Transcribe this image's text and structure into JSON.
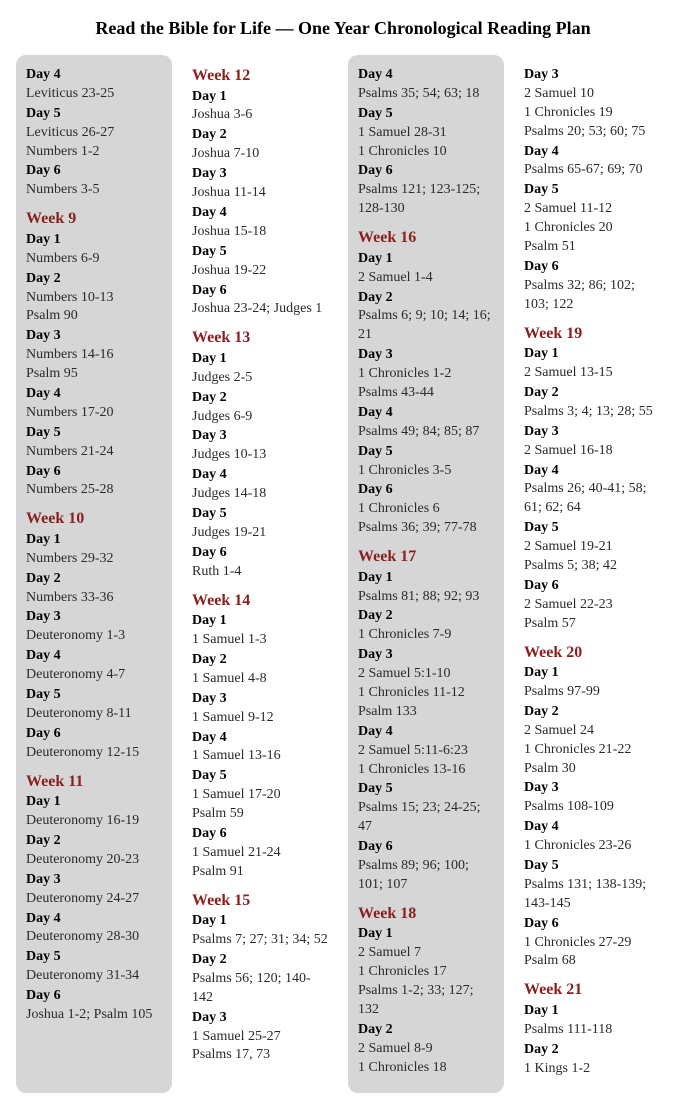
{
  "title": "Read the Bible for Life — One Year Chronological Reading Plan",
  "columns": [
    {
      "shaded": true,
      "items": [
        {
          "type": "day",
          "text": "Day 4"
        },
        {
          "type": "reading",
          "text": "Leviticus 23-25"
        },
        {
          "type": "day",
          "text": "Day 5"
        },
        {
          "type": "reading",
          "text": "Leviticus 26-27"
        },
        {
          "type": "reading",
          "text": "Numbers 1-2"
        },
        {
          "type": "day",
          "text": "Day 6"
        },
        {
          "type": "reading",
          "text": "Numbers 3-5"
        },
        {
          "type": "week",
          "text": "Week 9"
        },
        {
          "type": "day",
          "text": "Day 1"
        },
        {
          "type": "reading",
          "text": "Numbers 6-9"
        },
        {
          "type": "day",
          "text": "Day 2"
        },
        {
          "type": "reading",
          "text": "Numbers 10-13"
        },
        {
          "type": "reading",
          "text": "Psalm 90"
        },
        {
          "type": "day",
          "text": "Day 3"
        },
        {
          "type": "reading",
          "text": "Numbers 14-16"
        },
        {
          "type": "reading",
          "text": "Psalm 95"
        },
        {
          "type": "day",
          "text": "Day 4"
        },
        {
          "type": "reading",
          "text": "Numbers 17-20"
        },
        {
          "type": "day",
          "text": "Day 5"
        },
        {
          "type": "reading",
          "text": "Numbers 21-24"
        },
        {
          "type": "day",
          "text": "Day 6"
        },
        {
          "type": "reading",
          "text": "Numbers 25-28"
        },
        {
          "type": "week",
          "text": "Week 10"
        },
        {
          "type": "day",
          "text": "Day 1"
        },
        {
          "type": "reading",
          "text": "Numbers 29-32"
        },
        {
          "type": "day",
          "text": "Day 2"
        },
        {
          "type": "reading",
          "text": "Numbers 33-36"
        },
        {
          "type": "day",
          "text": "Day 3"
        },
        {
          "type": "reading",
          "text": "Deuteronomy 1-3"
        },
        {
          "type": "day",
          "text": "Day 4"
        },
        {
          "type": "reading",
          "text": "Deuteronomy 4-7"
        },
        {
          "type": "day",
          "text": "Day 5"
        },
        {
          "type": "reading",
          "text": "Deuteronomy 8-11"
        },
        {
          "type": "day",
          "text": "Day 6"
        },
        {
          "type": "reading",
          "text": "Deuteronomy 12-15"
        },
        {
          "type": "week",
          "text": "Week 11"
        },
        {
          "type": "day",
          "text": "Day 1"
        },
        {
          "type": "reading",
          "text": "Deuteronomy 16-19"
        },
        {
          "type": "day",
          "text": "Day 2"
        },
        {
          "type": "reading",
          "text": "Deuteronomy 20-23"
        },
        {
          "type": "day",
          "text": "Day 3"
        },
        {
          "type": "reading",
          "text": "Deuteronomy 24-27"
        },
        {
          "type": "day",
          "text": "Day 4"
        },
        {
          "type": "reading",
          "text": "Deuteronomy 28-30"
        },
        {
          "type": "day",
          "text": "Day 5"
        },
        {
          "type": "reading",
          "text": "Deuteronomy 31-34"
        },
        {
          "type": "day",
          "text": "Day 6"
        },
        {
          "type": "reading",
          "text": "Joshua 1-2; Psalm 105"
        }
      ]
    },
    {
      "shaded": false,
      "items": [
        {
          "type": "week",
          "text": "Week 12",
          "first": true
        },
        {
          "type": "day",
          "text": "Day 1"
        },
        {
          "type": "reading",
          "text": "Joshua 3-6"
        },
        {
          "type": "day",
          "text": "Day 2"
        },
        {
          "type": "reading",
          "text": "Joshua 7-10"
        },
        {
          "type": "day",
          "text": "Day 3"
        },
        {
          "type": "reading",
          "text": "Joshua 11-14"
        },
        {
          "type": "day",
          "text": "Day 4"
        },
        {
          "type": "reading",
          "text": "Joshua 15-18"
        },
        {
          "type": "day",
          "text": "Day 5"
        },
        {
          "type": "reading",
          "text": "Joshua 19-22"
        },
        {
          "type": "day",
          "text": "Day 6"
        },
        {
          "type": "reading",
          "text": "Joshua 23-24; Judges 1"
        },
        {
          "type": "week",
          "text": "Week 13"
        },
        {
          "type": "day",
          "text": "Day 1"
        },
        {
          "type": "reading",
          "text": "Judges 2-5"
        },
        {
          "type": "day",
          "text": "Day 2"
        },
        {
          "type": "reading",
          "text": "Judges 6-9"
        },
        {
          "type": "day",
          "text": "Day 3"
        },
        {
          "type": "reading",
          "text": "Judges 10-13"
        },
        {
          "type": "day",
          "text": "Day 4"
        },
        {
          "type": "reading",
          "text": "Judges 14-18"
        },
        {
          "type": "day",
          "text": "Day 5"
        },
        {
          "type": "reading",
          "text": "Judges 19-21"
        },
        {
          "type": "day",
          "text": "Day 6"
        },
        {
          "type": "reading",
          "text": "Ruth 1-4"
        },
        {
          "type": "week",
          "text": "Week 14"
        },
        {
          "type": "day",
          "text": "Day 1"
        },
        {
          "type": "reading",
          "text": "1 Samuel 1-3"
        },
        {
          "type": "day",
          "text": "Day 2"
        },
        {
          "type": "reading",
          "text": "1 Samuel 4-8"
        },
        {
          "type": "day",
          "text": "Day 3"
        },
        {
          "type": "reading",
          "text": "1 Samuel 9-12"
        },
        {
          "type": "day",
          "text": "Day 4"
        },
        {
          "type": "reading",
          "text": "1 Samuel 13-16"
        },
        {
          "type": "day",
          "text": "Day 5"
        },
        {
          "type": "reading",
          "text": "1 Samuel 17-20"
        },
        {
          "type": "reading",
          "text": "Psalm 59"
        },
        {
          "type": "day",
          "text": "Day 6"
        },
        {
          "type": "reading",
          "text": "1 Samuel 21-24"
        },
        {
          "type": "reading",
          "text": "Psalm 91"
        },
        {
          "type": "week",
          "text": "Week 15"
        },
        {
          "type": "day",
          "text": "Day 1"
        },
        {
          "type": "reading",
          "text": "Psalms 7; 27; 31; 34; 52"
        },
        {
          "type": "day",
          "text": "Day 2"
        },
        {
          "type": "reading",
          "text": "Psalms 56; 120; 140-142"
        },
        {
          "type": "day",
          "text": "Day 3"
        },
        {
          "type": "reading",
          "text": "1 Samuel 25-27"
        },
        {
          "type": "reading",
          "text": "Psalms 17, 73"
        }
      ]
    },
    {
      "shaded": true,
      "items": [
        {
          "type": "day",
          "text": "Day 4"
        },
        {
          "type": "reading",
          "text": "Psalms 35; 54; 63; 18"
        },
        {
          "type": "day",
          "text": "Day 5"
        },
        {
          "type": "reading",
          "text": "1 Samuel 28-31"
        },
        {
          "type": "reading",
          "text": "1 Chronicles 10"
        },
        {
          "type": "day",
          "text": "Day 6"
        },
        {
          "type": "reading",
          "text": "Psalms 121; 123-125; 128-130"
        },
        {
          "type": "week",
          "text": "Week 16"
        },
        {
          "type": "day",
          "text": "Day 1"
        },
        {
          "type": "reading",
          "text": "2 Samuel 1-4"
        },
        {
          "type": "day",
          "text": "Day 2"
        },
        {
          "type": "reading",
          "text": "Psalms 6; 9; 10; 14; 16; 21"
        },
        {
          "type": "day",
          "text": "Day 3"
        },
        {
          "type": "reading",
          "text": "1 Chronicles 1-2"
        },
        {
          "type": "reading",
          "text": "Psalms 43-44"
        },
        {
          "type": "day",
          "text": "Day 4"
        },
        {
          "type": "reading",
          "text": "Psalms 49; 84; 85; 87"
        },
        {
          "type": "day",
          "text": "Day 5"
        },
        {
          "type": "reading",
          "text": "1 Chronicles 3-5"
        },
        {
          "type": "day",
          "text": "Day 6"
        },
        {
          "type": "reading",
          "text": "1 Chronicles 6"
        },
        {
          "type": "reading",
          "text": "Psalms 36; 39; 77-78"
        },
        {
          "type": "week",
          "text": "Week 17"
        },
        {
          "type": "day",
          "text": "Day 1"
        },
        {
          "type": "reading",
          "text": "Psalms 81; 88; 92; 93"
        },
        {
          "type": "day",
          "text": "Day 2"
        },
        {
          "type": "reading",
          "text": "1 Chronicles 7-9"
        },
        {
          "type": "day",
          "text": "Day 3"
        },
        {
          "type": "reading",
          "text": "2 Samuel 5:1-10"
        },
        {
          "type": "reading",
          "text": "1 Chronicles 11-12"
        },
        {
          "type": "reading",
          "text": "Psalm 133"
        },
        {
          "type": "day",
          "text": "Day 4"
        },
        {
          "type": "reading",
          "text": "2 Samuel 5:11-6:23"
        },
        {
          "type": "reading",
          "text": "1 Chronicles 13-16"
        },
        {
          "type": "day",
          "text": "Day 5"
        },
        {
          "type": "reading",
          "text": "Psalms 15; 23; 24-25; 47"
        },
        {
          "type": "day",
          "text": "Day 6"
        },
        {
          "type": "reading",
          "text": "Psalms 89; 96; 100; 101; 107"
        },
        {
          "type": "week",
          "text": "Week 18"
        },
        {
          "type": "day",
          "text": "Day 1"
        },
        {
          "type": "reading",
          "text": "2 Samuel 7"
        },
        {
          "type": "reading",
          "text": "1 Chronicles 17"
        },
        {
          "type": "reading",
          "text": "Psalms 1-2; 33; 127; 132"
        },
        {
          "type": "day",
          "text": "Day 2"
        },
        {
          "type": "reading",
          "text": "2 Samuel 8-9"
        },
        {
          "type": "reading",
          "text": "1 Chronicles 18"
        }
      ]
    },
    {
      "shaded": false,
      "items": [
        {
          "type": "day",
          "text": "Day 3"
        },
        {
          "type": "reading",
          "text": "2 Samuel 10"
        },
        {
          "type": "reading",
          "text": "1 Chronicles 19"
        },
        {
          "type": "reading",
          "text": "Psalms 20; 53; 60; 75"
        },
        {
          "type": "day",
          "text": "Day 4"
        },
        {
          "type": "reading",
          "text": "Psalms 65-67; 69; 70"
        },
        {
          "type": "day",
          "text": "Day 5"
        },
        {
          "type": "reading",
          "text": "2 Samuel 11-12"
        },
        {
          "type": "reading",
          "text": "1 Chronicles 20"
        },
        {
          "type": "reading",
          "text": "Psalm 51"
        },
        {
          "type": "day",
          "text": "Day 6"
        },
        {
          "type": "reading",
          "text": "Psalms 32; 86; 102; 103; 122"
        },
        {
          "type": "week",
          "text": "Week 19"
        },
        {
          "type": "day",
          "text": "Day 1"
        },
        {
          "type": "reading",
          "text": "2 Samuel 13-15"
        },
        {
          "type": "day",
          "text": "Day 2"
        },
        {
          "type": "reading",
          "text": "Psalms 3; 4; 13; 28; 55"
        },
        {
          "type": "day",
          "text": "Day 3"
        },
        {
          "type": "reading",
          "text": "2 Samuel 16-18"
        },
        {
          "type": "day",
          "text": "Day 4"
        },
        {
          "type": "reading",
          "text": "Psalms 26; 40-41; 58; 61; 62; 64"
        },
        {
          "type": "day",
          "text": "Day 5"
        },
        {
          "type": "reading",
          "text": "2 Samuel 19-21"
        },
        {
          "type": "reading",
          "text": "Psalms 5; 38; 42"
        },
        {
          "type": "day",
          "text": "Day 6"
        },
        {
          "type": "reading",
          "text": "2 Samuel 22-23"
        },
        {
          "type": "reading",
          "text": "Psalm 57"
        },
        {
          "type": "week",
          "text": "Week 20"
        },
        {
          "type": "day",
          "text": "Day 1"
        },
        {
          "type": "reading",
          "text": "Psalms 97-99"
        },
        {
          "type": "day",
          "text": "Day 2"
        },
        {
          "type": "reading",
          "text": "2 Samuel 24"
        },
        {
          "type": "reading",
          "text": "1 Chronicles 21-22"
        },
        {
          "type": "reading",
          "text": "Psalm 30"
        },
        {
          "type": "day",
          "text": "Day 3"
        },
        {
          "type": "reading",
          "text": "Psalms 108-109"
        },
        {
          "type": "day",
          "text": "Day 4"
        },
        {
          "type": "reading",
          "text": "1 Chronicles 23-26"
        },
        {
          "type": "day",
          "text": "Day 5"
        },
        {
          "type": "reading",
          "text": "Psalms 131; 138-139; 143-145"
        },
        {
          "type": "day",
          "text": "Day 6"
        },
        {
          "type": "reading",
          "text": "1 Chronicles 27-29"
        },
        {
          "type": "reading",
          "text": "Psalm 68"
        },
        {
          "type": "week",
          "text": "Week 21"
        },
        {
          "type": "day",
          "text": "Day 1"
        },
        {
          "type": "reading",
          "text": "Psalms 111-118"
        },
        {
          "type": "day",
          "text": "Day 2"
        },
        {
          "type": "reading",
          "text": "1 Kings 1-2"
        }
      ]
    }
  ]
}
